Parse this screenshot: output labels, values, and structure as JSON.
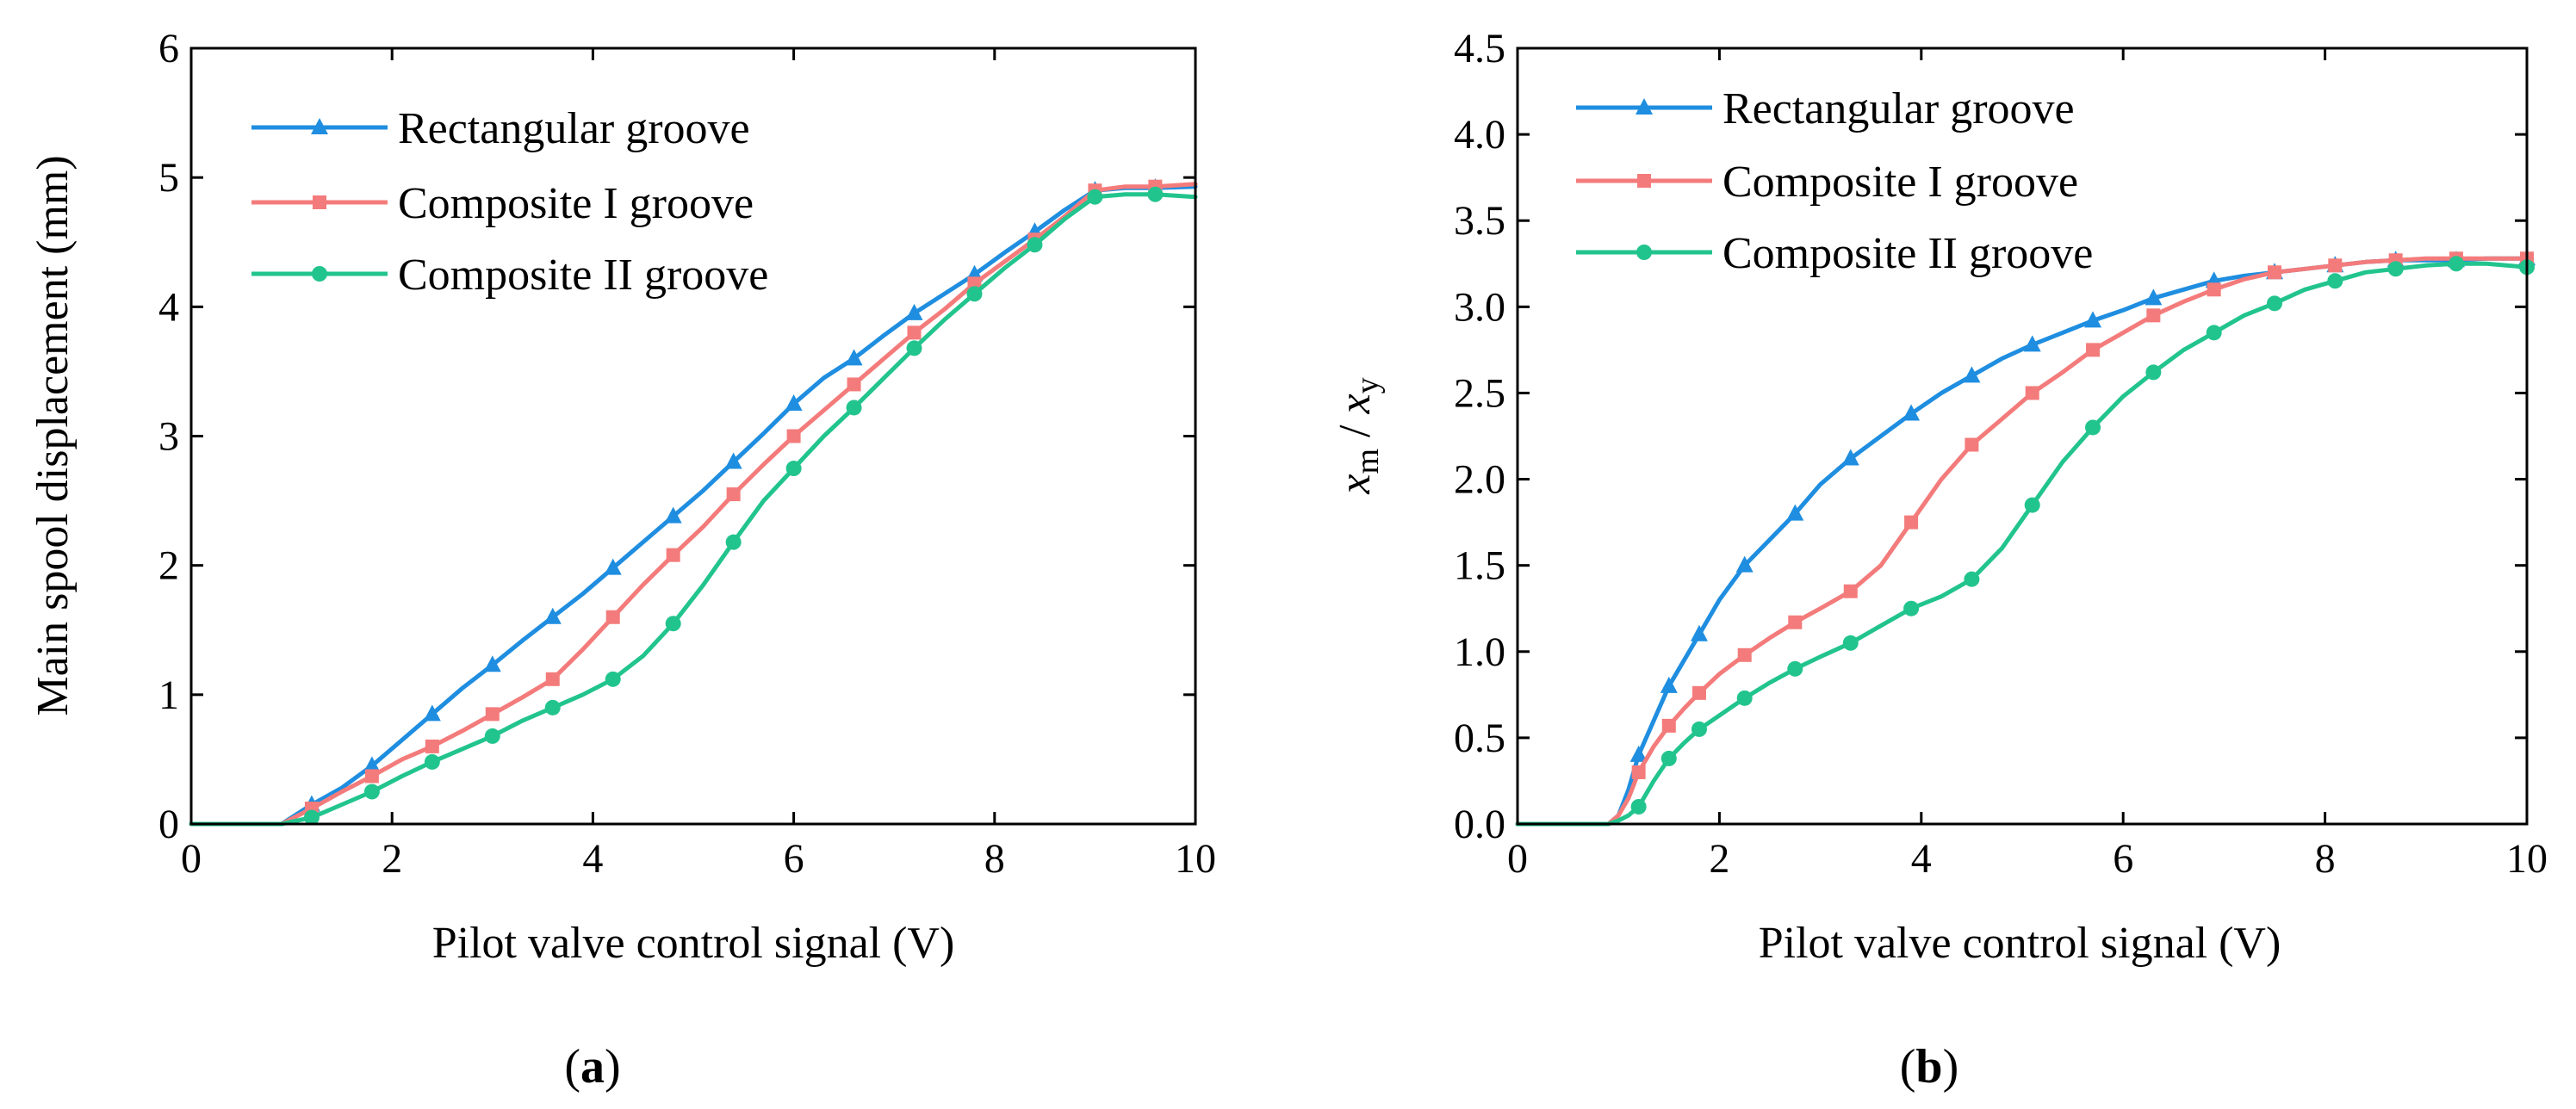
{
  "figure": {
    "panels": [
      {
        "label_open": "(",
        "label_letter": "a",
        "label_close": ")"
      },
      {
        "label_open": "(",
        "label_letter": "b",
        "label_close": ")"
      }
    ]
  },
  "colors": {
    "rectangular": "#1f8ee0",
    "composite1": "#f47b7b",
    "composite2": "#22c48e"
  },
  "chart_data": [
    {
      "type": "line",
      "title": "",
      "xlabel": "Pilot valve control signal (V)",
      "ylabel": "Main spool displacement (mm)",
      "xlim": [
        0,
        10
      ],
      "ylim": [
        0,
        6
      ],
      "xticks": [
        0,
        2,
        4,
        6,
        8,
        10
      ],
      "xtick_labels": [
        "0",
        "2",
        "4",
        "6",
        "8",
        "10"
      ],
      "yticks": [
        0,
        1,
        2,
        3,
        4,
        5,
        6
      ],
      "ytick_labels": [
        "0",
        "1",
        "2",
        "3",
        "4",
        "5",
        "6"
      ],
      "legend_position": "top-left",
      "series": [
        {
          "name": "Rectangular groove",
          "marker": "triangle",
          "color": "#1f8ee0",
          "x": [
            0,
            0.3,
            0.6,
            0.9,
            1.2,
            1.5,
            1.8,
            2.1,
            2.4,
            2.7,
            3.0,
            3.3,
            3.6,
            3.9,
            4.2,
            4.5,
            4.8,
            5.1,
            5.4,
            5.7,
            6.0,
            6.3,
            6.6,
            6.9,
            7.2,
            7.5,
            7.8,
            8.1,
            8.4,
            8.7,
            9.0,
            9.3,
            9.6,
            10.0
          ],
          "y": [
            0,
            0,
            0,
            0,
            0.15,
            0.28,
            0.45,
            0.65,
            0.85,
            1.05,
            1.23,
            1.42,
            1.6,
            1.78,
            1.98,
            2.18,
            2.38,
            2.58,
            2.8,
            3.02,
            3.25,
            3.45,
            3.6,
            3.78,
            3.95,
            4.1,
            4.25,
            4.42,
            4.58,
            4.75,
            4.9,
            4.92,
            4.92,
            4.93
          ]
        },
        {
          "name": "Composite I groove",
          "marker": "square",
          "color": "#f47b7b",
          "x": [
            0,
            0.3,
            0.6,
            0.9,
            1.2,
            1.5,
            1.8,
            2.1,
            2.4,
            2.7,
            3.0,
            3.3,
            3.6,
            3.9,
            4.2,
            4.5,
            4.8,
            5.1,
            5.4,
            5.7,
            6.0,
            6.3,
            6.6,
            6.9,
            7.2,
            7.5,
            7.8,
            8.1,
            8.4,
            8.7,
            9.0,
            9.3,
            9.6,
            10.0
          ],
          "y": [
            0,
            0,
            0,
            0,
            0.12,
            0.25,
            0.37,
            0.5,
            0.6,
            0.72,
            0.85,
            0.98,
            1.12,
            1.35,
            1.6,
            1.85,
            2.08,
            2.3,
            2.55,
            2.78,
            3.0,
            3.2,
            3.4,
            3.6,
            3.8,
            3.98,
            4.18,
            4.35,
            4.52,
            4.7,
            4.9,
            4.93,
            4.93,
            4.95
          ]
        },
        {
          "name": "Composite II groove",
          "marker": "circle",
          "color": "#22c48e",
          "x": [
            0,
            0.3,
            0.6,
            0.9,
            1.2,
            1.5,
            1.8,
            2.1,
            2.4,
            2.7,
            3.0,
            3.3,
            3.6,
            3.9,
            4.2,
            4.5,
            4.8,
            5.1,
            5.4,
            5.7,
            6.0,
            6.3,
            6.6,
            6.9,
            7.2,
            7.5,
            7.8,
            8.1,
            8.4,
            8.7,
            9.0,
            9.3,
            9.6,
            10.0
          ],
          "y": [
            0,
            0,
            0,
            0,
            0.05,
            0.15,
            0.25,
            0.37,
            0.48,
            0.58,
            0.68,
            0.8,
            0.9,
            1.0,
            1.12,
            1.3,
            1.55,
            1.85,
            2.18,
            2.5,
            2.75,
            3.0,
            3.22,
            3.45,
            3.68,
            3.9,
            4.1,
            4.3,
            4.48,
            4.68,
            4.85,
            4.87,
            4.87,
            4.85
          ]
        }
      ]
    },
    {
      "type": "line",
      "title": "",
      "xlabel": "Pilot valve control signal (V)",
      "ylabel_x": "x",
      "ylabel_x_sub": "m",
      "ylabel_sep": " / ",
      "ylabel_y": "x",
      "ylabel_y_sub": "y",
      "xlim": [
        0,
        10
      ],
      "ylim": [
        0,
        4.5
      ],
      "xticks": [
        0,
        2,
        4,
        6,
        8,
        10
      ],
      "xtick_labels": [
        "0",
        "2",
        "4",
        "6",
        "8",
        "10"
      ],
      "yticks": [
        0,
        0.5,
        1.0,
        1.5,
        2.0,
        2.5,
        3.0,
        3.5,
        4.0,
        4.5
      ],
      "ytick_labels": [
        "0.0",
        "0.5",
        "1.0",
        "1.5",
        "2.0",
        "2.5",
        "3.0",
        "3.5",
        "4.0",
        "4.5"
      ],
      "legend_position": "top-left",
      "series": [
        {
          "name": "Rectangular groove",
          "marker": "triangle",
          "color": "#1f8ee0",
          "x": [
            0,
            0.3,
            0.6,
            0.9,
            1.0,
            1.1,
            1.2,
            1.35,
            1.5,
            1.65,
            1.8,
            2.0,
            2.25,
            2.5,
            2.75,
            3.0,
            3.3,
            3.6,
            3.9,
            4.2,
            4.5,
            4.8,
            5.1,
            5.4,
            5.7,
            6.0,
            6.3,
            6.6,
            6.9,
            7.2,
            7.5,
            7.8,
            8.1,
            8.4,
            8.7,
            9.0,
            9.3,
            9.6,
            10.0
          ],
          "y": [
            0,
            0,
            0,
            0,
            0.05,
            0.2,
            0.4,
            0.6,
            0.8,
            0.95,
            1.1,
            1.3,
            1.5,
            1.65,
            1.8,
            1.97,
            2.12,
            2.25,
            2.38,
            2.5,
            2.6,
            2.7,
            2.78,
            2.85,
            2.92,
            2.98,
            3.05,
            3.1,
            3.15,
            3.18,
            3.2,
            3.22,
            3.24,
            3.26,
            3.27,
            3.27,
            3.27,
            3.28,
            3.28
          ]
        },
        {
          "name": "Composite I groove",
          "marker": "square",
          "color": "#f47b7b",
          "x": [
            0,
            0.3,
            0.6,
            0.9,
            1.0,
            1.1,
            1.2,
            1.35,
            1.5,
            1.65,
            1.8,
            2.0,
            2.25,
            2.5,
            2.75,
            3.0,
            3.3,
            3.6,
            3.9,
            4.2,
            4.5,
            4.8,
            5.1,
            5.4,
            5.7,
            6.0,
            6.3,
            6.6,
            6.9,
            7.2,
            7.5,
            7.8,
            8.1,
            8.4,
            8.7,
            9.0,
            9.3,
            9.6,
            10.0
          ],
          "y": [
            0,
            0,
            0,
            0,
            0.05,
            0.15,
            0.3,
            0.45,
            0.57,
            0.67,
            0.76,
            0.87,
            0.98,
            1.08,
            1.17,
            1.25,
            1.35,
            1.5,
            1.75,
            2.0,
            2.2,
            2.35,
            2.5,
            2.62,
            2.75,
            2.85,
            2.95,
            3.03,
            3.1,
            3.16,
            3.2,
            3.22,
            3.24,
            3.26,
            3.27,
            3.28,
            3.28,
            3.28,
            3.28
          ]
        },
        {
          "name": "Composite II groove",
          "marker": "circle",
          "color": "#22c48e",
          "x": [
            0,
            0.3,
            0.6,
            0.9,
            1.0,
            1.1,
            1.2,
            1.35,
            1.5,
            1.65,
            1.8,
            2.0,
            2.25,
            2.5,
            2.75,
            3.0,
            3.3,
            3.6,
            3.9,
            4.2,
            4.5,
            4.8,
            5.1,
            5.4,
            5.7,
            6.0,
            6.3,
            6.6,
            6.9,
            7.2,
            7.5,
            7.8,
            8.1,
            8.4,
            8.7,
            9.0,
            9.3,
            9.6,
            10.0
          ],
          "y": [
            0,
            0,
            0,
            0,
            0.02,
            0.05,
            0.1,
            0.25,
            0.38,
            0.47,
            0.55,
            0.63,
            0.73,
            0.82,
            0.9,
            0.97,
            1.05,
            1.15,
            1.25,
            1.32,
            1.42,
            1.6,
            1.85,
            2.1,
            2.3,
            2.48,
            2.62,
            2.75,
            2.85,
            2.95,
            3.02,
            3.1,
            3.15,
            3.2,
            3.22,
            3.24,
            3.25,
            3.25,
            3.23
          ]
        }
      ]
    }
  ]
}
